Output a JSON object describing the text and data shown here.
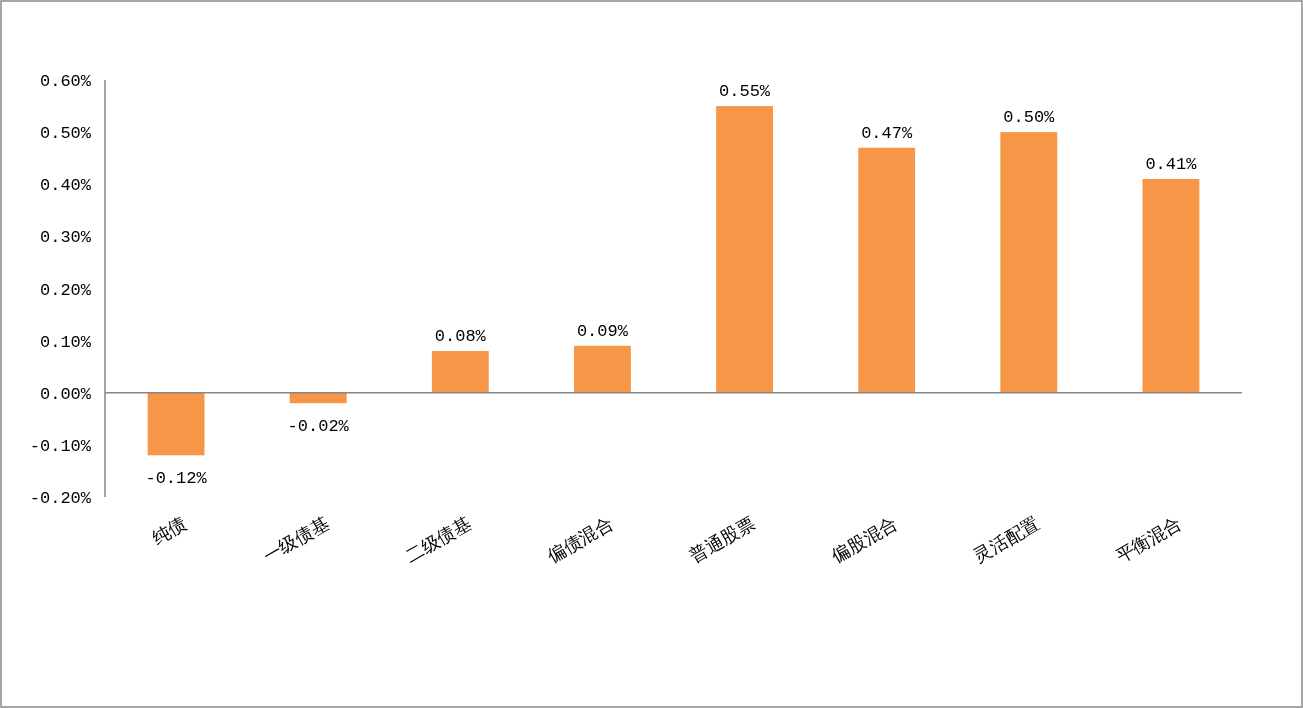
{
  "chart_data": {
    "type": "bar",
    "categories": [
      "纯债",
      "一级债基",
      "二级债基",
      "偏债混合",
      "普通股票",
      "偏股混合",
      "灵活配置",
      "平衡混合"
    ],
    "values": [
      -0.12,
      -0.02,
      0.08,
      0.09,
      0.55,
      0.47,
      0.5,
      0.41
    ],
    "value_labels": [
      "-0.12%",
      "-0.02%",
      "0.08%",
      "0.09%",
      "0.55%",
      "0.47%",
      "0.50%",
      "0.41%"
    ],
    "color": "#f79646",
    "ylim": [
      -0.2,
      0.6
    ],
    "yticks": [
      {
        "value": -0.2,
        "label": "-0.20%"
      },
      {
        "value": -0.1,
        "label": "-0.10%"
      },
      {
        "value": 0,
        "label": "0.00%"
      },
      {
        "value": 0.1,
        "label": "0.10%"
      },
      {
        "value": 0.2,
        "label": "0.20%"
      },
      {
        "value": 0.3,
        "label": "0.30%"
      },
      {
        "value": 0.4,
        "label": "0.40%"
      },
      {
        "value": 0.5,
        "label": "0.50%"
      },
      {
        "value": 0.6,
        "label": "0.60%"
      }
    ],
    "relative": false
  }
}
